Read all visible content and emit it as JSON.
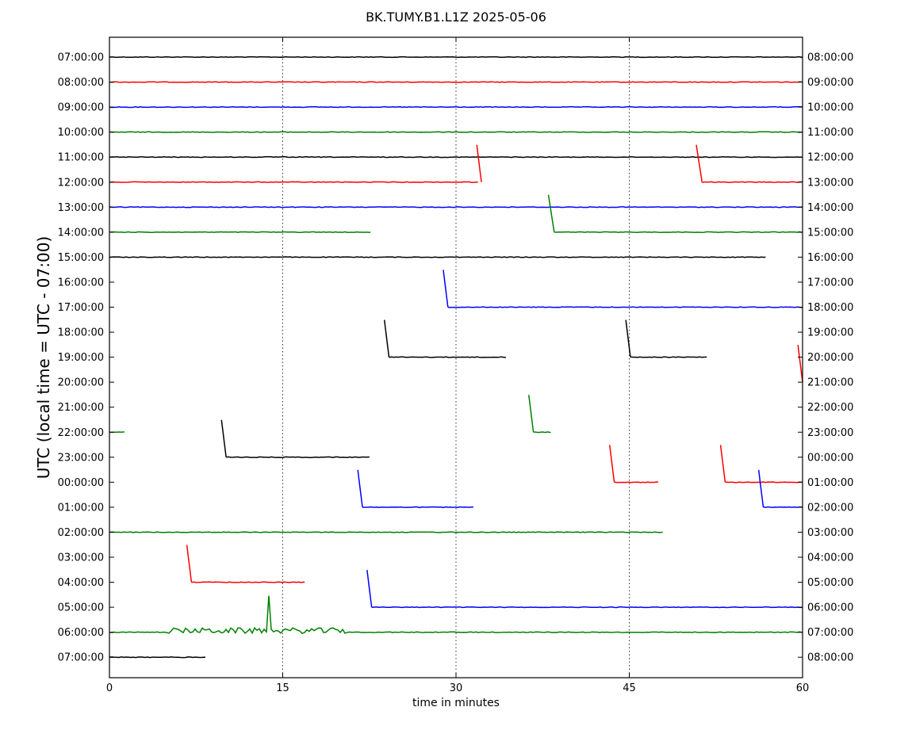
{
  "chart_data": {
    "type": "line",
    "title": "BK.TUMY.B1.L1Z 2025-05-06",
    "xlabel": "time in minutes",
    "ylabel": "UTC (local time = UTC - 07:00)",
    "xlim": [
      0,
      60
    ],
    "x_ticks": [
      "0",
      "15",
      "30",
      "45",
      "60"
    ],
    "x_tick_values": [
      0,
      15,
      30,
      45,
      60
    ],
    "grid": "vertical dotted at 15, 30, 45",
    "left_labels": [
      "07:00:00",
      "08:00:00",
      "09:00:00",
      "10:00:00",
      "11:00:00",
      "12:00:00",
      "13:00:00",
      "14:00:00",
      "15:00:00",
      "16:00:00",
      "17:00:00",
      "18:00:00",
      "19:00:00",
      "20:00:00",
      "21:00:00",
      "22:00:00",
      "23:00:00",
      "00:00:00",
      "01:00:00",
      "02:00:00",
      "03:00:00",
      "04:00:00",
      "05:00:00",
      "06:00:00",
      "07:00:00"
    ],
    "right_labels": [
      "08:00:00",
      "09:00:00",
      "10:00:00",
      "11:00:00",
      "12:00:00",
      "13:00:00",
      "14:00:00",
      "15:00:00",
      "16:00:00",
      "17:00:00",
      "18:00:00",
      "19:00:00",
      "20:00:00",
      "21:00:00",
      "22:00:00",
      "23:00:00",
      "00:00:00",
      "01:00:00",
      "02:00:00",
      "03:00:00",
      "04:00:00",
      "05:00:00",
      "06:00:00",
      "07:00:00",
      "08:00:00"
    ],
    "colors": [
      "#000000",
      "#ff0000",
      "#0000ff",
      "#008000"
    ],
    "traces": [
      {
        "row": 0,
        "segments": [
          [
            0,
            60
          ]
        ],
        "ramps": []
      },
      {
        "row": 1,
        "segments": [
          [
            0,
            60
          ]
        ],
        "ramps": []
      },
      {
        "row": 2,
        "segments": [
          [
            0,
            60
          ]
        ],
        "ramps": []
      },
      {
        "row": 3,
        "segments": [
          [
            0,
            60
          ]
        ],
        "ramps": []
      },
      {
        "row": 4,
        "segments": [
          [
            0,
            60
          ]
        ],
        "ramps": []
      },
      {
        "row": 5,
        "segments": [
          [
            0,
            31.9
          ],
          [
            51.3,
            60
          ]
        ],
        "ramps": [
          [
            31.8,
            32.2
          ],
          [
            50.8,
            51.3
          ]
        ]
      },
      {
        "row": 6,
        "segments": [
          [
            0,
            60
          ]
        ],
        "ramps": []
      },
      {
        "row": 7,
        "segments": [
          [
            0,
            22.6
          ],
          [
            38.5,
            60
          ]
        ],
        "ramps": [
          [
            38.0,
            38.5
          ]
        ]
      },
      {
        "row": 8,
        "segments": [
          [
            0,
            56.8
          ]
        ],
        "ramps": []
      },
      {
        "row": 9,
        "segments": [],
        "ramps": []
      },
      {
        "row": 10,
        "segments": [
          [
            29.3,
            60
          ]
        ],
        "ramps": [
          [
            28.9,
            29.3
          ]
        ]
      },
      {
        "row": 11,
        "segments": [],
        "ramps": []
      },
      {
        "row": 12,
        "segments": [
          [
            24.2,
            34.3
          ],
          [
            45.1,
            51.7
          ]
        ],
        "ramps": [
          [
            23.8,
            24.2
          ],
          [
            44.7,
            45.1
          ]
        ]
      },
      {
        "row": 13,
        "segments": [],
        "ramps": [
          [
            59.6,
            60
          ]
        ]
      },
      {
        "row": 14,
        "segments": [],
        "ramps": []
      },
      {
        "row": 15,
        "segments": [
          [
            0,
            1.3
          ],
          [
            36.7,
            38.2
          ]
        ],
        "ramps": [
          [
            36.3,
            36.7
          ]
        ]
      },
      {
        "row": 16,
        "segments": [
          [
            10.1,
            22.5
          ]
        ],
        "ramps": [
          [
            9.7,
            10.1
          ]
        ]
      },
      {
        "row": 17,
        "segments": [
          [
            43.7,
            47.5
          ],
          [
            53.3,
            60
          ]
        ],
        "ramps": [
          [
            43.3,
            43.7
          ],
          [
            52.9,
            53.3
          ]
        ]
      },
      {
        "row": 18,
        "segments": [
          [
            21.9,
            31.5
          ],
          [
            56.6,
            60
          ]
        ],
        "ramps": [
          [
            21.5,
            21.9
          ],
          [
            56.2,
            56.6
          ]
        ]
      },
      {
        "row": 19,
        "segments": [
          [
            0,
            47.9
          ]
        ],
        "ramps": []
      },
      {
        "row": 20,
        "segments": [],
        "ramps": []
      },
      {
        "row": 21,
        "segments": [
          [
            7.1,
            16.9
          ]
        ],
        "ramps": [
          [
            6.7,
            7.1
          ]
        ]
      },
      {
        "row": 22,
        "segments": [
          [
            22.7,
            60
          ]
        ],
        "ramps": [
          [
            22.3,
            22.7
          ]
        ]
      },
      {
        "row": 23,
        "segments": [
          [
            0,
            60
          ]
        ],
        "ramps": [],
        "burst": [
          5.0,
          20.4
        ],
        "spike": 13.8
      },
      {
        "row": 24,
        "segments": [
          [
            0,
            8.3
          ]
        ],
        "ramps": []
      }
    ]
  }
}
